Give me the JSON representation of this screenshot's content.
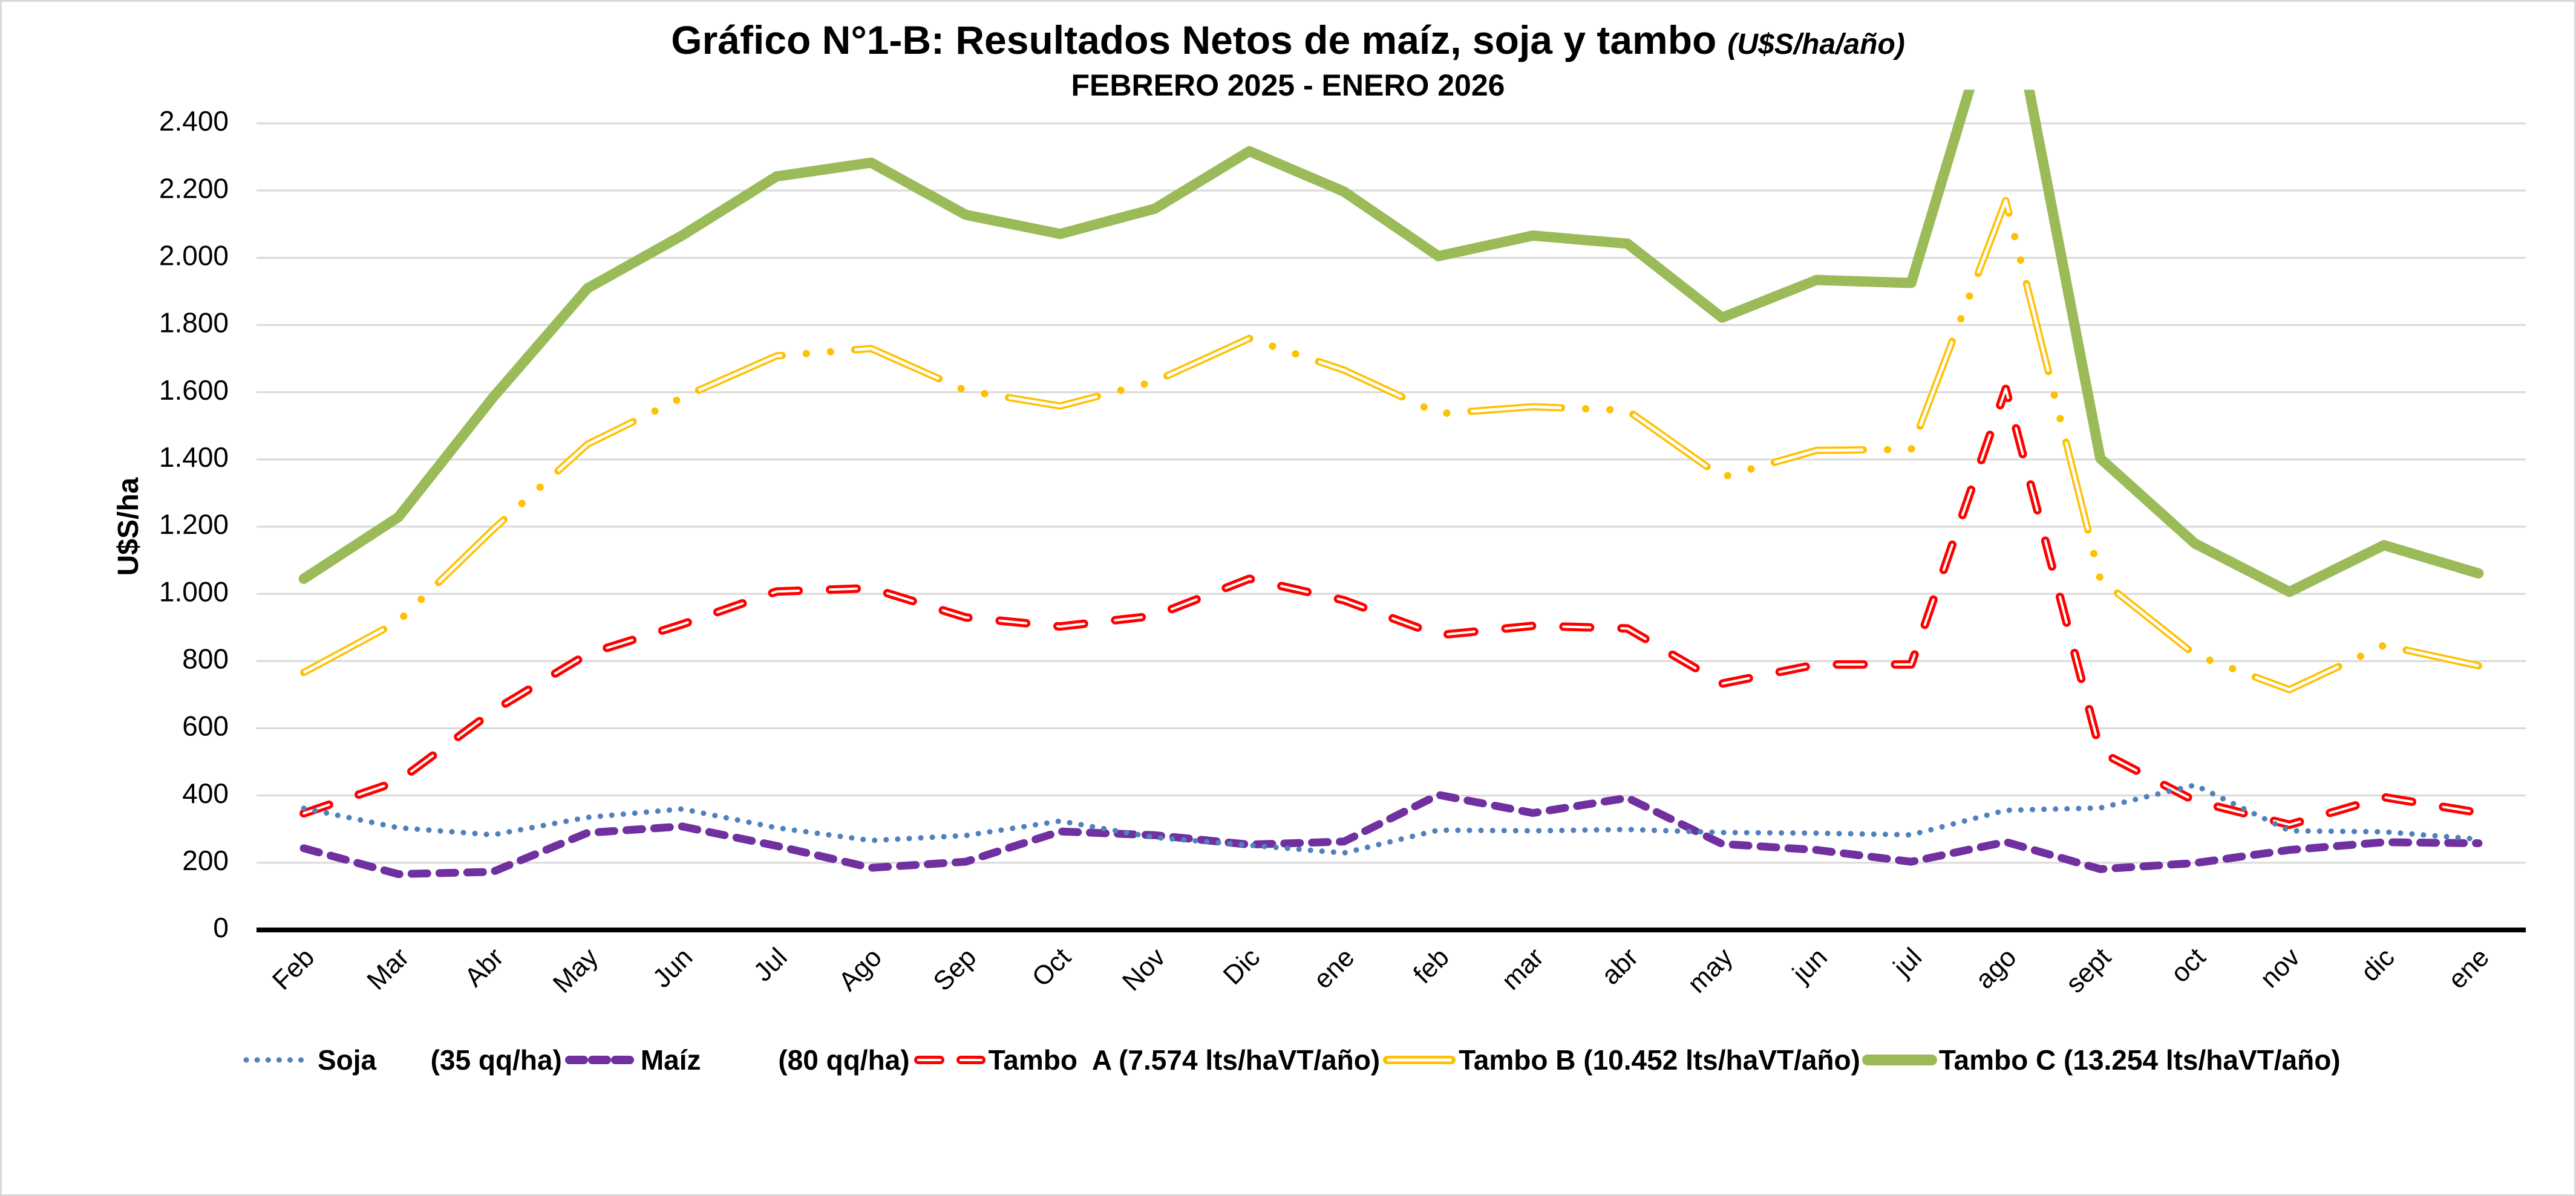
{
  "chart_data": {
    "type": "line",
    "title": "Gráfico N°1-B: Resultados Netos de maíz, soja y tambo",
    "title_units": "(U$S/ha/año)",
    "subtitle": "FEBRERO 2025 - ENERO 2026",
    "xlabel": "",
    "ylabel": "U$S/ha",
    "ylim": [
      0,
      2500
    ],
    "yticks": [
      0,
      200,
      400,
      600,
      800,
      1000,
      1200,
      1400,
      1600,
      1800,
      2000,
      2200,
      2400
    ],
    "ytick_labels": [
      "0",
      "200",
      "400",
      "600",
      "800",
      "1.000",
      "1.200",
      "1.400",
      "1.600",
      "1.800",
      "2.000",
      "2.200",
      "2.400"
    ],
    "grid": true,
    "legend_position": "bottom",
    "categories": [
      "Feb",
      "Mar",
      "Abr",
      "May",
      "Jun",
      "Jul",
      "Ago",
      "Sep",
      "Oct",
      "Nov",
      "Dic",
      "ene",
      "feb",
      "mar",
      "abr",
      "may",
      "jun",
      "jul",
      "ago",
      "sept",
      "oct",
      "nov",
      "dic",
      "ene"
    ],
    "series": [
      {
        "name": "Soja",
        "legend_label": "Soja       (35 qq/ha)",
        "color": "#4f81bd",
        "style": "dotted",
        "values": [
          362,
          304,
          283,
          335,
          360,
          304,
          266,
          281,
          324,
          275,
          252,
          229,
          297,
          295,
          299,
          290,
          288,
          283,
          356,
          363,
          431,
          295,
          292,
          270
        ]
      },
      {
        "name": "Maíz",
        "legend_label": "Maíz          (80 qq/ha)",
        "color": "#7030a0",
        "style": "dashed",
        "values": [
          243,
          166,
          173,
          289,
          308,
          250,
          185,
          203,
          293,
          282,
          254,
          263,
          402,
          348,
          393,
          256,
          238,
          203,
          262,
          181,
          199,
          238,
          261,
          258
        ]
      },
      {
        "name": "Tambo A",
        "legend_label": "Tambo  A (7.574 lts/haVT/año)",
        "color": "#ff0000",
        "style": "double-dash",
        "values": [
          347,
          443,
          651,
          821,
          909,
          1007,
          1017,
          930,
          903,
          935,
          1045,
          981,
          877,
          905,
          897,
          733,
          790,
          790,
          1610,
          530,
          384,
          313,
          395,
          349
        ]
      },
      {
        "name": "Tambo B",
        "legend_label": "Tambo B (10.452 lts/haVT/año)",
        "color": "#ffc000",
        "style": "double-dash-dot",
        "values": [
          766,
          918,
          1191,
          1445,
          1584,
          1708,
          1730,
          1605,
          1559,
          1632,
          1760,
          1666,
          1536,
          1557,
          1546,
          1347,
          1427,
          1430,
          2170,
          1043,
          819,
          715,
          847,
          786
        ]
      },
      {
        "name": "Tambo C",
        "legend_label": "Tambo C (13.254 lts/haVT/año)",
        "color": "#9bbb59",
        "style": "solid",
        "values": [
          1045,
          1228,
          1584,
          1909,
          2066,
          2242,
          2283,
          2128,
          2071,
          2146,
          2317,
          2197,
          2005,
          2066,
          2042,
          1822,
          1934,
          1925,
          2860,
          1403,
          1150,
          1006,
          1145,
          1061
        ]
      }
    ]
  }
}
